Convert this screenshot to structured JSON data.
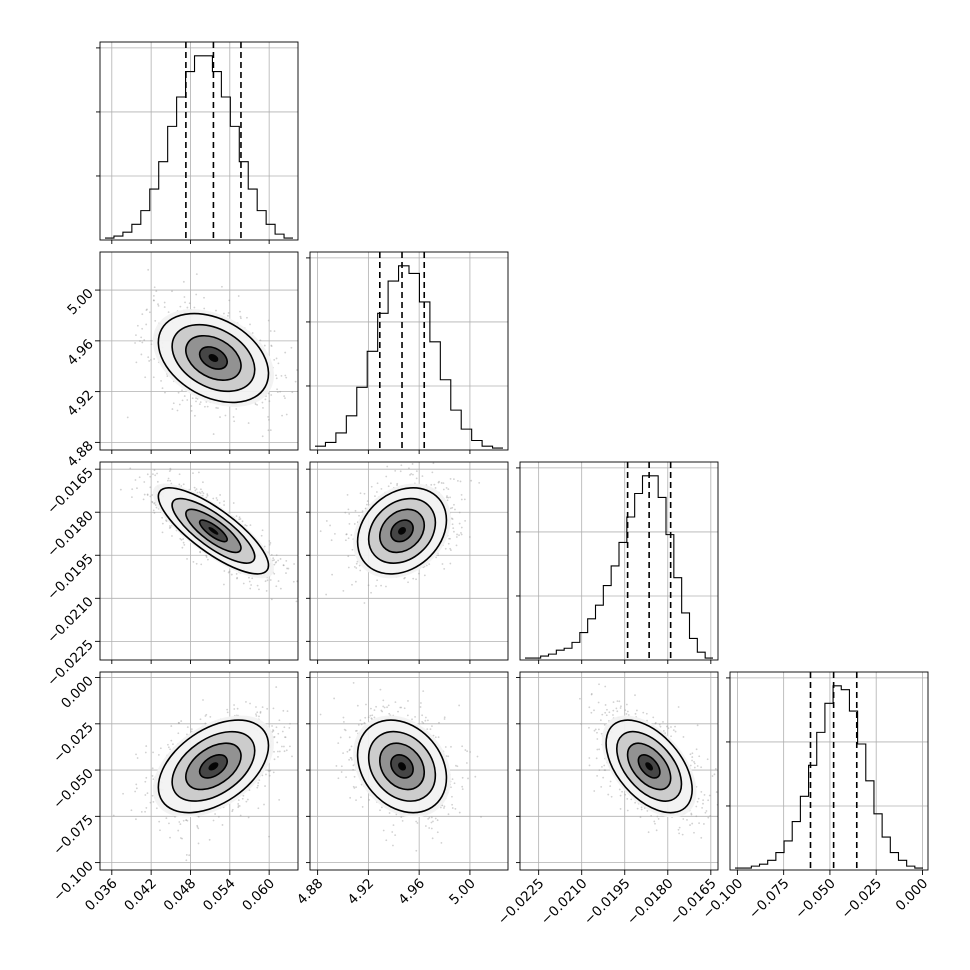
{
  "chart_data": {
    "type": "corner",
    "parameters": [
      {
        "mean": 0.0515,
        "sd": 0.0042,
        "range": [
          0.0342,
          0.0644
        ],
        "q16": 0.0473,
        "q50": 0.0515,
        "q84": 0.0557,
        "ticks": [
          0.036,
          0.042,
          0.048,
          0.054,
          0.06
        ],
        "tick_labels": [
          "0.036",
          "0.042",
          "0.048",
          "0.054",
          "0.060"
        ],
        "hist": [
          1,
          2,
          4,
          8,
          15,
          26,
          40,
          58,
          73,
          86,
          94,
          94,
          86,
          73,
          58,
          40,
          26,
          15,
          8,
          3,
          1
        ]
      },
      {
        "mean": 4.9465,
        "sd": 0.0175,
        "range": [
          4.874,
          5.03
        ],
        "q16": 4.929,
        "q50": 4.9465,
        "q84": 4.964,
        "ticks": [
          4.88,
          4.92,
          4.96,
          5.0
        ],
        "tick_labels": [
          "4.88",
          "4.92",
          "4.96",
          "5.00"
        ],
        "hist": [
          2,
          4,
          9,
          18,
          33,
          52,
          72,
          89,
          97,
          93,
          78,
          57,
          37,
          21,
          11,
          5,
          2,
          1
        ]
      },
      {
        "mean": -0.01865,
        "sd": 0.00075,
        "range": [
          -0.02315,
          -0.01625
        ],
        "q16": -0.0194,
        "q50": -0.01865,
        "q84": -0.0179,
        "ticks": [
          -0.0225,
          -0.021,
          -0.0195,
          -0.018,
          -0.0165
        ],
        "tick_labels": [
          "−0.0225",
          "−0.0210",
          "−0.0195",
          "−0.0180",
          "−0.0165"
        ],
        "hist": [
          1,
          1,
          2,
          3,
          5,
          6,
          9,
          14,
          21,
          28,
          38,
          48,
          60,
          73,
          85,
          94,
          94,
          83,
          64,
          42,
          24,
          11,
          4,
          1
        ]
      },
      {
        "mean": -0.048,
        "sd": 0.0125,
        "range": [
          -0.104,
          0.003
        ],
        "q16": -0.0605,
        "q50": -0.048,
        "q84": -0.0355,
        "ticks": [
          -0.1,
          -0.075,
          -0.05,
          -0.025,
          0.0
        ],
        "tick_labels": [
          "−0.100",
          "−0.075",
          "−0.050",
          "−0.025",
          "0.000"
        ],
        "hist": [
          1,
          1,
          2,
          3,
          5,
          9,
          15,
          25,
          38,
          54,
          71,
          86,
          95,
          93,
          82,
          65,
          46,
          29,
          17,
          9,
          5,
          2,
          1
        ]
      }
    ],
    "correlations": [
      {
        "x": 0,
        "y": 1,
        "rho": -0.35
      },
      {
        "x": 0,
        "y": 2,
        "rho": -0.8
      },
      {
        "x": 1,
        "y": 2,
        "rho": 0.25
      },
      {
        "x": 0,
        "y": 3,
        "rho": 0.45
      },
      {
        "x": 1,
        "y": 3,
        "rho": -0.25
      },
      {
        "x": 2,
        "y": 3,
        "rho": -0.5
      }
    ],
    "contour_levels_sigma": [
      0.5,
      1.0,
      1.5,
      2.0
    ],
    "quantiles": [
      0.16,
      0.5,
      0.84
    ],
    "grid": true
  }
}
